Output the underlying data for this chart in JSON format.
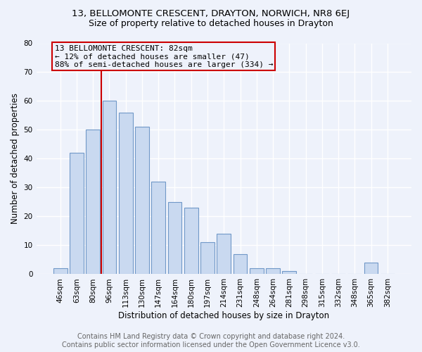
{
  "title1": "13, BELLOMONTE CRESCENT, DRAYTON, NORWICH, NR8 6EJ",
  "title2": "Size of property relative to detached houses in Drayton",
  "xlabel": "Distribution of detached houses by size in Drayton",
  "ylabel": "Number of detached properties",
  "footer1": "Contains HM Land Registry data © Crown copyright and database right 2024.",
  "footer2": "Contains public sector information licensed under the Open Government Licence v3.0.",
  "bin_labels": [
    "46sqm",
    "63sqm",
    "80sqm",
    "96sqm",
    "113sqm",
    "130sqm",
    "147sqm",
    "164sqm",
    "180sqm",
    "197sqm",
    "214sqm",
    "231sqm",
    "248sqm",
    "264sqm",
    "281sqm",
    "298sqm",
    "315sqm",
    "332sqm",
    "348sqm",
    "365sqm",
    "382sqm"
  ],
  "bin_values": [
    2,
    42,
    50,
    60,
    56,
    51,
    32,
    25,
    23,
    11,
    14,
    7,
    2,
    2,
    1,
    0,
    0,
    0,
    0,
    4,
    0
  ],
  "bar_color": "#c9d9f0",
  "bar_edge_color": "#7098c8",
  "vline_color": "#cc0000",
  "vline_x_index": 2.5,
  "annotation_text": "13 BELLOMONTE CRESCENT: 82sqm\n← 12% of detached houses are smaller (47)\n88% of semi-detached houses are larger (334) →",
  "annotation_box_edge": "#cc0000",
  "ylim": [
    0,
    80
  ],
  "yticks": [
    0,
    10,
    20,
    30,
    40,
    50,
    60,
    70,
    80
  ],
  "background_color": "#eef2fb",
  "grid_color": "#ffffff",
  "title1_fontsize": 9.5,
  "title2_fontsize": 9,
  "xlabel_fontsize": 8.5,
  "ylabel_fontsize": 8.5,
  "tick_fontsize": 7.5,
  "annotation_fontsize": 8,
  "footer_fontsize": 7
}
